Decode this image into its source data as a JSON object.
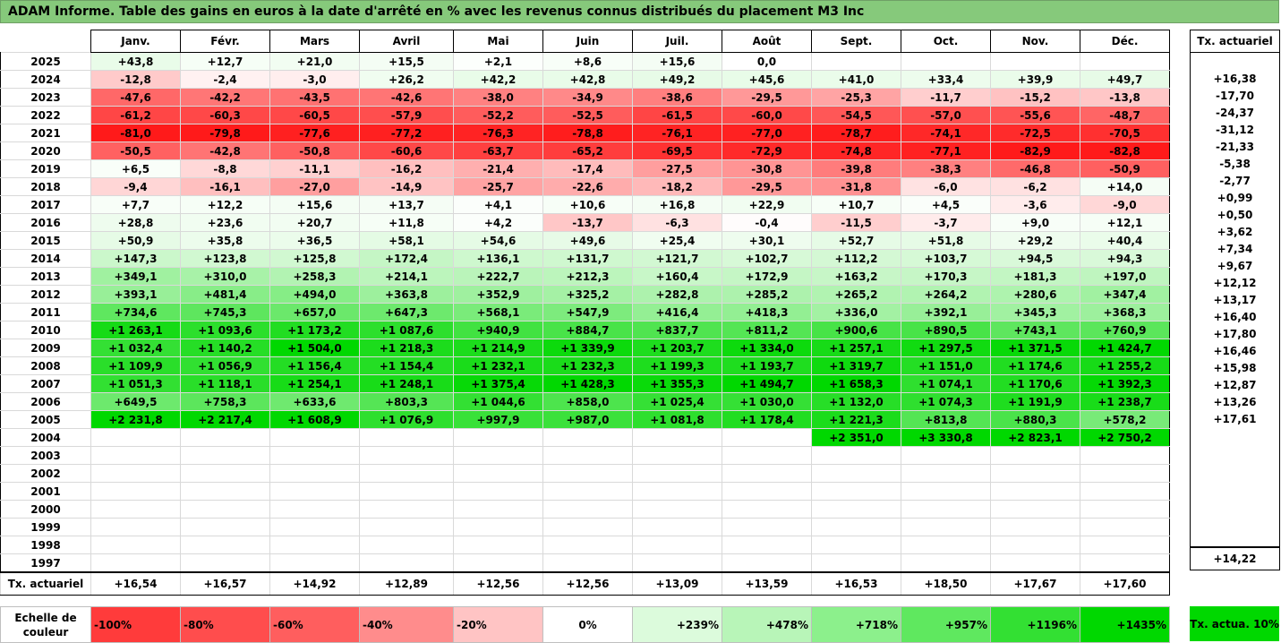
{
  "title": "ADAM Informe. Table des gains en euros à la date d'arrêté en % avec les revenus connus distribués du placement M3 Inc",
  "months": [
    "Janv.",
    "Févr.",
    "Mars",
    "Avril",
    "Mai",
    "Juin",
    "Juil.",
    "Août",
    "Sept.",
    "Oct.",
    "Nov.",
    "Déc."
  ],
  "side_header": "Tx. actuariel",
  "rows": [
    {
      "year": "2025",
      "cells": [
        "+43,8",
        "+12,7",
        "+21,0",
        "+15,5",
        "+2,1",
        "+8,6",
        "+15,6",
        "0,0",
        "",
        "",
        "",
        ""
      ],
      "rate": ""
    },
    {
      "year": "2024",
      "cells": [
        "-12,8",
        "-2,4",
        "-3,0",
        "+26,2",
        "+42,2",
        "+42,8",
        "+49,2",
        "+45,6",
        "+41,0",
        "+33,4",
        "+39,9",
        "+49,7"
      ],
      "rate": "+16,38"
    },
    {
      "year": "2023",
      "cells": [
        "-47,6",
        "-42,2",
        "-43,5",
        "-42,6",
        "-38,0",
        "-34,9",
        "-38,6",
        "-29,5",
        "-25,3",
        "-11,7",
        "-15,2",
        "-13,8"
      ],
      "rate": "-17,70"
    },
    {
      "year": "2022",
      "cells": [
        "-61,2",
        "-60,3",
        "-60,5",
        "-57,9",
        "-52,2",
        "-52,5",
        "-61,5",
        "-60,0",
        "-54,5",
        "-57,0",
        "-55,6",
        "-48,7"
      ],
      "rate": "-24,37"
    },
    {
      "year": "2021",
      "cells": [
        "-81,0",
        "-79,8",
        "-77,6",
        "-77,2",
        "-76,3",
        "-78,8",
        "-76,1",
        "-77,0",
        "-78,7",
        "-74,1",
        "-72,5",
        "-70,5"
      ],
      "rate": "-31,12"
    },
    {
      "year": "2020",
      "cells": [
        "-50,5",
        "-42,8",
        "-50,8",
        "-60,6",
        "-63,7",
        "-65,2",
        "-69,5",
        "-72,9",
        "-74,8",
        "-77,1",
        "-82,9",
        "-82,8"
      ],
      "rate": "-21,33"
    },
    {
      "year": "2019",
      "cells": [
        "+6,5",
        "-8,8",
        "-11,1",
        "-16,2",
        "-21,4",
        "-17,4",
        "-27,5",
        "-30,8",
        "-39,8",
        "-38,3",
        "-46,8",
        "-50,9"
      ],
      "rate": "-5,38"
    },
    {
      "year": "2018",
      "cells": [
        "-9,4",
        "-16,1",
        "-27,0",
        "-14,9",
        "-25,7",
        "-22,6",
        "-18,2",
        "-29,5",
        "-31,8",
        "-6,0",
        "-6,2",
        "+14,0"
      ],
      "rate": "-2,77"
    },
    {
      "year": "2017",
      "cells": [
        "+7,7",
        "+12,2",
        "+15,6",
        "+13,7",
        "+4,1",
        "+10,6",
        "+16,8",
        "+22,9",
        "+10,7",
        "+4,5",
        "-3,6",
        "-9,0"
      ],
      "rate": "+0,99"
    },
    {
      "year": "2016",
      "cells": [
        "+28,8",
        "+23,6",
        "+20,7",
        "+11,8",
        "+4,2",
        "-13,7",
        "-6,3",
        "-0,4",
        "-11,5",
        "-3,7",
        "+9,0",
        "+12,1"
      ],
      "rate": "+0,50"
    },
    {
      "year": "2015",
      "cells": [
        "+50,9",
        "+35,8",
        "+36,5",
        "+58,1",
        "+54,6",
        "+49,6",
        "+25,4",
        "+30,1",
        "+52,7",
        "+51,8",
        "+29,2",
        "+40,4"
      ],
      "rate": "+3,62"
    },
    {
      "year": "2014",
      "cells": [
        "+147,3",
        "+123,8",
        "+125,8",
        "+172,4",
        "+136,1",
        "+131,7",
        "+121,7",
        "+102,7",
        "+112,2",
        "+103,7",
        "+94,5",
        "+94,3"
      ],
      "rate": "+7,34"
    },
    {
      "year": "2013",
      "cells": [
        "+349,1",
        "+310,0",
        "+258,3",
        "+214,1",
        "+222,7",
        "+212,3",
        "+160,4",
        "+172,9",
        "+163,2",
        "+170,3",
        "+181,3",
        "+197,0"
      ],
      "rate": "+9,67"
    },
    {
      "year": "2012",
      "cells": [
        "+393,1",
        "+481,4",
        "+494,0",
        "+363,8",
        "+352,9",
        "+325,2",
        "+282,8",
        "+285,2",
        "+265,2",
        "+264,2",
        "+280,6",
        "+347,4"
      ],
      "rate": "+12,12"
    },
    {
      "year": "2011",
      "cells": [
        "+734,6",
        "+745,3",
        "+657,0",
        "+647,3",
        "+568,1",
        "+547,9",
        "+416,4",
        "+418,3",
        "+336,0",
        "+392,1",
        "+345,3",
        "+368,3"
      ],
      "rate": "+13,17"
    },
    {
      "year": "2010",
      "cells": [
        "+1 263,1",
        "+1 093,6",
        "+1 173,2",
        "+1 087,6",
        "+940,9",
        "+884,7",
        "+837,7",
        "+811,2",
        "+900,6",
        "+890,5",
        "+743,1",
        "+760,9"
      ],
      "rate": "+16,40"
    },
    {
      "year": "2009",
      "cells": [
        "+1 032,4",
        "+1 140,2",
        "+1 504,0",
        "+1 218,3",
        "+1 214,9",
        "+1 339,9",
        "+1 203,7",
        "+1 334,0",
        "+1 257,1",
        "+1 297,5",
        "+1 371,5",
        "+1 424,7"
      ],
      "rate": "+17,80"
    },
    {
      "year": "2008",
      "cells": [
        "+1 109,9",
        "+1 056,9",
        "+1 156,4",
        "+1 154,4",
        "+1 232,1",
        "+1 232,3",
        "+1 199,3",
        "+1 193,7",
        "+1 319,7",
        "+1 151,0",
        "+1 174,6",
        "+1 255,2"
      ],
      "rate": "+16,46"
    },
    {
      "year": "2007",
      "cells": [
        "+1 051,3",
        "+1 118,1",
        "+1 254,1",
        "+1 248,1",
        "+1 375,4",
        "+1 428,3",
        "+1 355,3",
        "+1 494,7",
        "+1 658,3",
        "+1 074,1",
        "+1 170,6",
        "+1 392,3"
      ],
      "rate": "+15,98"
    },
    {
      "year": "2006",
      "cells": [
        "+649,5",
        "+758,3",
        "+633,6",
        "+803,3",
        "+1 044,6",
        "+858,0",
        "+1 025,4",
        "+1 030,0",
        "+1 132,0",
        "+1 074,3",
        "+1 191,9",
        "+1 238,7"
      ],
      "rate": "+12,87"
    },
    {
      "year": "2005",
      "cells": [
        "+2 231,8",
        "+2 217,4",
        "+1 608,9",
        "+1 076,9",
        "+997,9",
        "+987,0",
        "+1 081,8",
        "+1 178,4",
        "+1 221,3",
        "+813,8",
        "+880,3",
        "+578,2"
      ],
      "rate": "+13,26"
    },
    {
      "year": "2004",
      "cells": [
        "",
        "",
        "",
        "",
        "",
        "",
        "",
        "",
        "+2 351,0",
        "+3 330,8",
        "+2 823,1",
        "+2 750,2"
      ],
      "rate": "+17,61"
    },
    {
      "year": "2003",
      "cells": [
        "",
        "",
        "",
        "",
        "",
        "",
        "",
        "",
        "",
        "",
        "",
        ""
      ],
      "rate": ""
    },
    {
      "year": "2002",
      "cells": [
        "",
        "",
        "",
        "",
        "",
        "",
        "",
        "",
        "",
        "",
        "",
        ""
      ],
      "rate": ""
    },
    {
      "year": "2001",
      "cells": [
        "",
        "",
        "",
        "",
        "",
        "",
        "",
        "",
        "",
        "",
        "",
        ""
      ],
      "rate": ""
    },
    {
      "year": "2000",
      "cells": [
        "",
        "",
        "",
        "",
        "",
        "",
        "",
        "",
        "",
        "",
        "",
        ""
      ],
      "rate": ""
    },
    {
      "year": "1999",
      "cells": [
        "",
        "",
        "",
        "",
        "",
        "",
        "",
        "",
        "",
        "",
        "",
        ""
      ],
      "rate": ""
    },
    {
      "year": "1998",
      "cells": [
        "",
        "",
        "",
        "",
        "",
        "",
        "",
        "",
        "",
        "",
        "",
        ""
      ],
      "rate": ""
    },
    {
      "year": "1997",
      "cells": [
        "",
        "",
        "",
        "",
        "",
        "",
        "",
        "",
        "",
        "",
        "",
        ""
      ],
      "rate": ""
    }
  ],
  "footer": {
    "label": "Tx. actuariel",
    "values": [
      "+16,54",
      "+16,57",
      "+14,92",
      "+12,89",
      "+12,56",
      "+12,56",
      "+13,09",
      "+13,59",
      "+16,53",
      "+18,50",
      "+17,67",
      "+17,60"
    ],
    "overall": "+14,22"
  },
  "scale": {
    "label": "Echelle de couleur",
    "items": [
      {
        "text": "-100%",
        "color": "#ff3b3b"
      },
      {
        "text": "-80%",
        "color": "#ff4d4d"
      },
      {
        "text": "-60%",
        "color": "#ff5e5e"
      },
      {
        "text": "-40%",
        "color": "#ff8c8c"
      },
      {
        "text": "-20%",
        "color": "#ffc4c4"
      },
      {
        "text": "0%",
        "color": "#ffffff"
      },
      {
        "text": "+239%",
        "color": "#dcfbdc"
      },
      {
        "text": "+478%",
        "color": "#b8f5b8"
      },
      {
        "text": "+718%",
        "color": "#8cf08c"
      },
      {
        "text": "+957%",
        "color": "#5fe85f"
      },
      {
        "text": "+1196%",
        "color": "#33e033"
      },
      {
        "text": "+1435%",
        "color": "#00d800"
      }
    ],
    "side_label": "Tx. actua. 10%",
    "side_color": "#00d800"
  },
  "colors": {
    "title_bg": "#86c97b",
    "negative_max": "#ff1a1a",
    "positive_max": "#00d800"
  }
}
